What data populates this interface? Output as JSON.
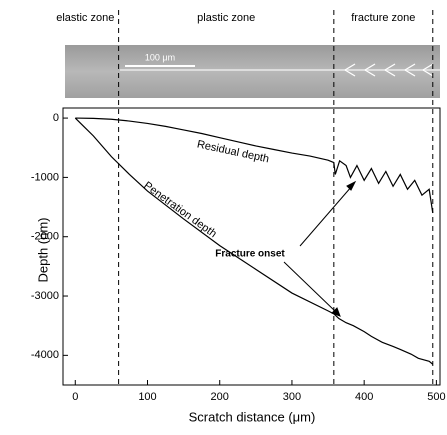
{
  "chart_data": {
    "type": "line",
    "zone_labels": [
      "elastic zone",
      "plastic zone",
      "fracture zone"
    ],
    "zone_boundaries": [
      60,
      358,
      495
    ],
    "scale_bar_label": "100 μm",
    "xlabel": "Scratch distance (μm)",
    "ylabel": "Depth (nm)",
    "xlim": [
      -17,
      505
    ],
    "ylim": [
      -4500,
      170
    ],
    "xticks": [
      0,
      100,
      200,
      300,
      400,
      500
    ],
    "yticks": [
      0,
      -1000,
      -2000,
      -3000,
      -4000
    ],
    "annotations": [
      "Fracture onset"
    ],
    "series": [
      {
        "name": "Residual depth",
        "color": "#000000",
        "x": [
          0,
          25,
          50,
          75,
          100,
          125,
          150,
          175,
          200,
          225,
          250,
          275,
          300,
          325,
          350,
          358,
          360,
          366,
          375,
          381,
          390,
          400,
          410,
          420,
          430,
          440,
          450,
          460,
          470,
          480,
          490,
          495
        ],
        "values": [
          0,
          -5,
          -20,
          -50,
          -90,
          -140,
          -200,
          -260,
          -330,
          -400,
          -470,
          -530,
          -590,
          -640,
          -710,
          -750,
          -950,
          -720,
          -800,
          -1000,
          -800,
          -1050,
          -850,
          -1100,
          -900,
          -1150,
          -950,
          -1200,
          -1050,
          -1300,
          -1200,
          -1600
        ]
      },
      {
        "name": "Penetration depth",
        "color": "#000000",
        "x": [
          0,
          25,
          50,
          75,
          100,
          150,
          200,
          250,
          300,
          350,
          358,
          365,
          375,
          385,
          400,
          410,
          425,
          440,
          450,
          465,
          475,
          490,
          495
        ],
        "values": [
          0,
          -300,
          -650,
          -950,
          -1230,
          -1700,
          -2150,
          -2550,
          -2950,
          -3250,
          -3300,
          -3380,
          -3450,
          -3500,
          -3600,
          -3680,
          -3780,
          -3850,
          -3900,
          -3980,
          -4050,
          -4100,
          -4150
        ]
      }
    ]
  }
}
